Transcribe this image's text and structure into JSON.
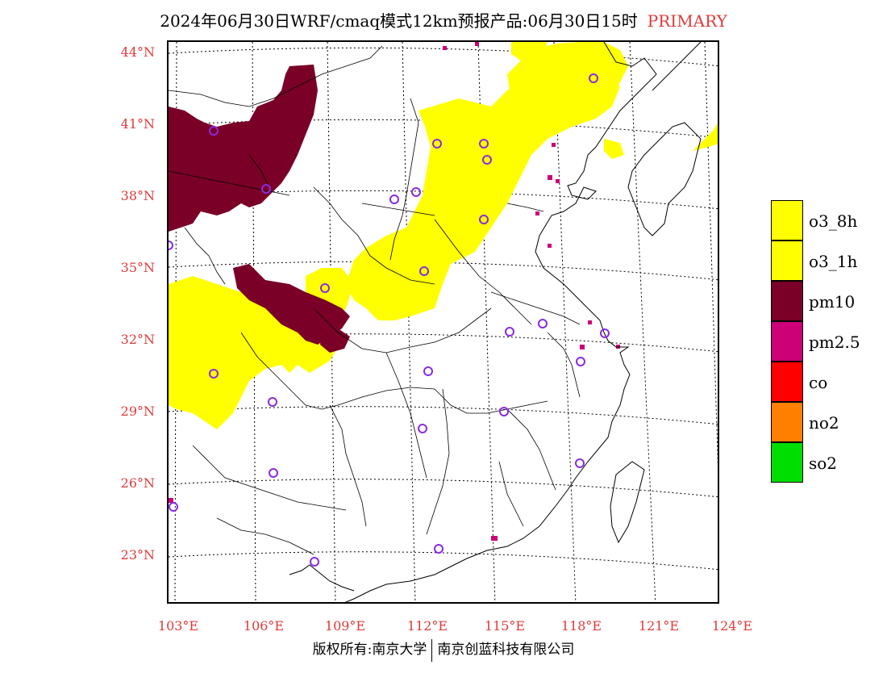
{
  "title": {
    "main": "2024年06月30日WRF/cmaq模式12km预报产品:06月30日15时",
    "tag": "PRIMARY"
  },
  "map": {
    "lat_labels": [
      "44°N",
      "41°N",
      "38°N",
      "35°N",
      "32°N",
      "29°N",
      "26°N",
      "23°N"
    ],
    "lon_labels": [
      "103°E",
      "106°E",
      "109°E",
      "112°E",
      "115°E",
      "118°E",
      "121°E",
      "124°E"
    ],
    "colors": {
      "o3": "#ffff00",
      "pm10": "#7a0028",
      "pm25": "#cc0077",
      "station": "#8a2be2",
      "label": "#e03a3a"
    }
  },
  "legend": [
    {
      "label": "o3_8h",
      "color": "#ffff00"
    },
    {
      "label": "o3_1h",
      "color": "#ffff00"
    },
    {
      "label": "pm10",
      "color": "#7a0028"
    },
    {
      "label": "pm2.5",
      "color": "#cc0077"
    },
    {
      "label": "co",
      "color": "#ff0000"
    },
    {
      "label": "no2",
      "color": "#ff7f00"
    },
    {
      "label": "so2",
      "color": "#00dd00"
    }
  ],
  "footer": {
    "left": "版权所有:南京大学",
    "right": "南京创蓝科技有限公司"
  }
}
